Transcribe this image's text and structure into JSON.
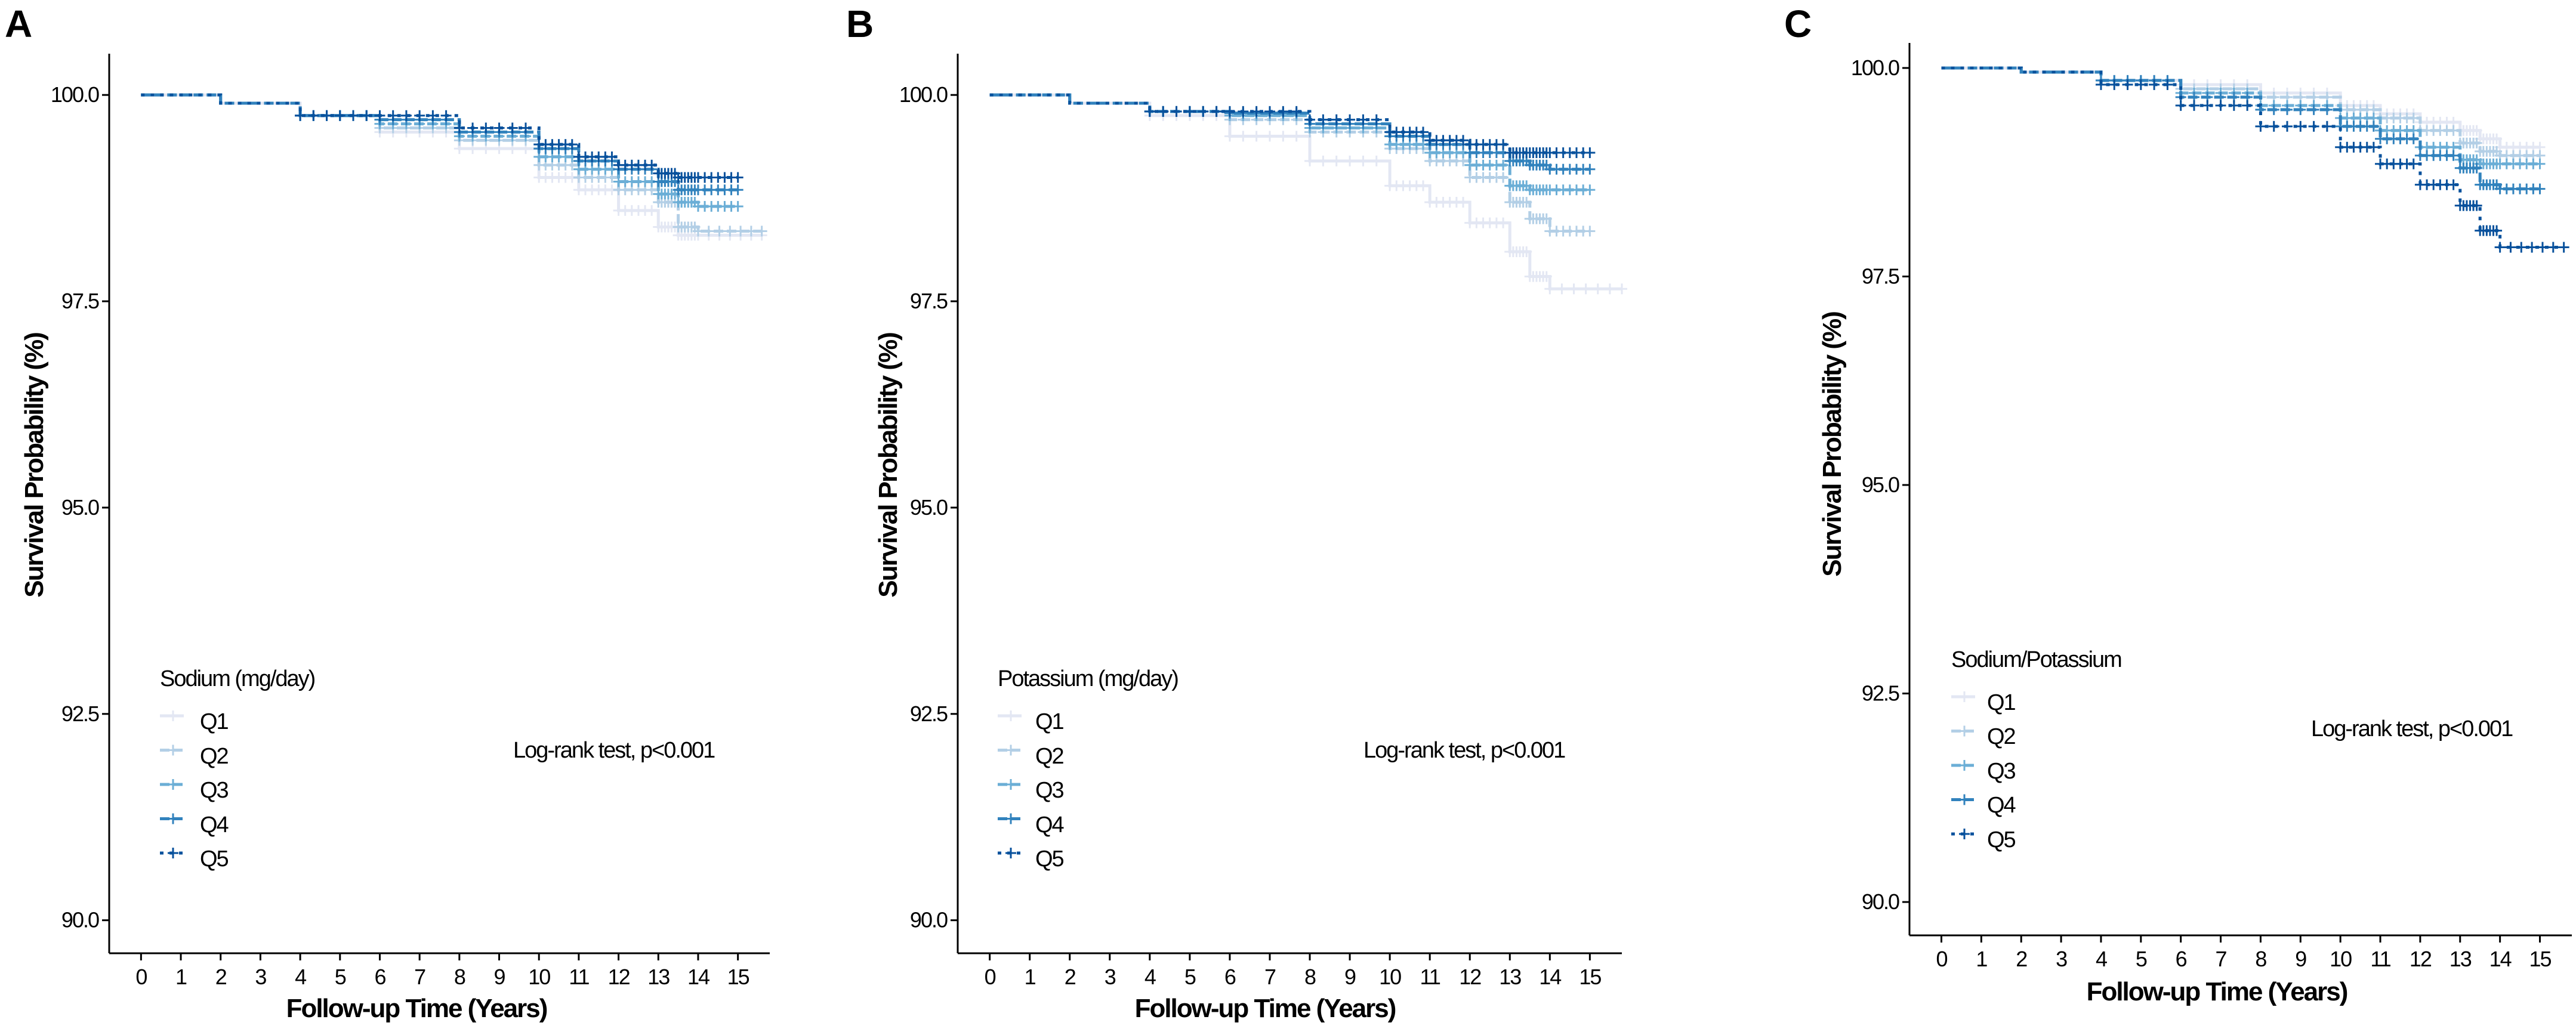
{
  "figure": {
    "panels": [
      "A",
      "B",
      "C"
    ]
  },
  "chart_data": [
    {
      "type": "line",
      "panel": "A",
      "title": "",
      "xlabel": "Follow-up Time (Years)",
      "ylabel": "Survival Probability (%)",
      "xlim": [
        -0.8,
        15.8
      ],
      "ylim": [
        89.6,
        100.5
      ],
      "x_ticks": [
        "0",
        "1",
        "2",
        "3",
        "4",
        "5",
        "6",
        "7",
        "8",
        "9",
        "10",
        "11",
        "12",
        "13",
        "14",
        "15"
      ],
      "y_ticks": [
        "90.0",
        "92.5",
        "95.0",
        "97.5",
        "100.0"
      ],
      "legend_title": "Sodium (mg/day)",
      "legend_placement": "bottom-left",
      "annotation": "Log-rank test, p<0.001",
      "series": [
        {
          "name": "Q1",
          "color": "#e3e7f3",
          "x": [
            0,
            2,
            4,
            6,
            8,
            10,
            11,
            12,
            13,
            13.5,
            14,
            15.6
          ],
          "y": [
            100,
            99.9,
            99.75,
            99.55,
            99.35,
            99.0,
            98.85,
            98.6,
            98.4,
            98.3,
            98.3,
            98.3
          ]
        },
        {
          "name": "Q2",
          "color": "#b3cfe6",
          "x": [
            0,
            2,
            4,
            6,
            8,
            10,
            11,
            12,
            13,
            13.5,
            14,
            15.6
          ],
          "y": [
            100,
            99.9,
            99.75,
            99.6,
            99.45,
            99.15,
            99.0,
            98.85,
            98.7,
            98.4,
            98.35,
            98.35
          ]
        },
        {
          "name": "Q3",
          "color": "#6baed6",
          "x": [
            0,
            2,
            4,
            6,
            8,
            10,
            11,
            12,
            13,
            13.5,
            14,
            15
          ],
          "y": [
            100,
            99.9,
            99.75,
            99.65,
            99.5,
            99.25,
            99.1,
            98.95,
            98.8,
            98.7,
            98.65,
            98.65
          ]
        },
        {
          "name": "Q4",
          "color": "#3182bd",
          "x": [
            0,
            2,
            4,
            6,
            8,
            10,
            11,
            12,
            13,
            13.5,
            14,
            15
          ],
          "y": [
            100,
            99.9,
            99.75,
            99.7,
            99.55,
            99.35,
            99.2,
            99.1,
            98.95,
            98.85,
            98.85,
            98.85
          ]
        },
        {
          "name": "Q5",
          "color": "#08519c",
          "x": [
            0,
            2,
            4,
            6,
            8,
            10,
            11,
            12,
            13,
            13.5,
            14,
            15
          ],
          "y": [
            100,
            99.9,
            99.75,
            99.75,
            99.6,
            99.4,
            99.25,
            99.15,
            99.05,
            99.0,
            99.0,
            99.0
          ]
        }
      ]
    },
    {
      "type": "line",
      "panel": "B",
      "title": "",
      "xlabel": "Follow-up Time (Years)",
      "ylabel": "Survival Probability (%)",
      "xlim": [
        -0.8,
        15.8
      ],
      "ylim": [
        89.6,
        100.5
      ],
      "x_ticks": [
        "0",
        "1",
        "2",
        "3",
        "4",
        "5",
        "6",
        "7",
        "8",
        "9",
        "10",
        "11",
        "12",
        "13",
        "14",
        "15"
      ],
      "y_ticks": [
        "90.0",
        "92.5",
        "95.0",
        "97.5",
        "100.0"
      ],
      "legend_title": "Potassium (mg/day)",
      "legend_placement": "bottom-left",
      "annotation": "Log-rank test, p<0.001",
      "series": [
        {
          "name": "Q1",
          "color": "#e3e7f3",
          "x": [
            0,
            2,
            4,
            6,
            8,
            10,
            11,
            12,
            13,
            13.5,
            14,
            15.8
          ],
          "y": [
            100,
            99.9,
            99.75,
            99.5,
            99.2,
            98.9,
            98.7,
            98.45,
            98.1,
            97.8,
            97.65,
            97.65
          ]
        },
        {
          "name": "Q2",
          "color": "#b3cfe6",
          "x": [
            0,
            2,
            4,
            6,
            8,
            10,
            11,
            12,
            13,
            13.5,
            14,
            15
          ],
          "y": [
            100,
            99.9,
            99.8,
            99.7,
            99.55,
            99.35,
            99.2,
            99.0,
            98.7,
            98.5,
            98.35,
            98.35
          ]
        },
        {
          "name": "Q3",
          "color": "#6baed6",
          "x": [
            0,
            2,
            4,
            6,
            8,
            10,
            11,
            12,
            13,
            13.5,
            14,
            15
          ],
          "y": [
            100,
            99.9,
            99.8,
            99.75,
            99.6,
            99.4,
            99.3,
            99.15,
            98.9,
            98.85,
            98.85,
            98.85
          ]
        },
        {
          "name": "Q4",
          "color": "#3182bd",
          "x": [
            0,
            2,
            4,
            6,
            8,
            10,
            11,
            12,
            13,
            13.5,
            14,
            15
          ],
          "y": [
            100,
            99.9,
            99.8,
            99.78,
            99.65,
            99.5,
            99.4,
            99.3,
            99.2,
            99.15,
            99.1,
            99.1
          ]
        },
        {
          "name": "Q5",
          "color": "#08519c",
          "x": [
            0,
            2,
            4,
            6,
            8,
            10,
            11,
            12,
            13,
            13.5,
            14,
            15
          ],
          "y": [
            100,
            99.9,
            99.8,
            99.8,
            99.7,
            99.55,
            99.45,
            99.4,
            99.3,
            99.3,
            99.3,
            99.3
          ]
        }
      ]
    },
    {
      "type": "line",
      "panel": "C",
      "title": "",
      "xlabel": "Follow-up Time (Years)",
      "ylabel": "Survival Probability (%)",
      "xlim": [
        -0.8,
        15.8
      ],
      "ylim": [
        89.6,
        100.3
      ],
      "x_ticks": [
        "0",
        "1",
        "2",
        "3",
        "4",
        "5",
        "6",
        "7",
        "8",
        "9",
        "10",
        "11",
        "12",
        "13",
        "14",
        "15"
      ],
      "y_ticks": [
        "90.0",
        "92.5",
        "95.0",
        "97.5",
        "100.0"
      ],
      "legend_title": "Sodium/Potassium",
      "legend_placement": "bottom-left",
      "annotation": "Log-rank test, p<0.001",
      "series": [
        {
          "name": "Q1",
          "color": "#e3e7f3",
          "x": [
            0,
            2,
            4,
            6,
            8,
            10,
            11,
            12,
            13,
            13.5,
            14,
            15
          ],
          "y": [
            100,
            99.95,
            99.85,
            99.8,
            99.7,
            99.55,
            99.45,
            99.35,
            99.25,
            99.15,
            99.05,
            99.05
          ]
        },
        {
          "name": "Q2",
          "color": "#b3cfe6",
          "x": [
            0,
            2,
            4,
            6,
            8,
            10,
            11,
            12,
            13,
            13.5,
            14,
            15
          ],
          "y": [
            100,
            99.95,
            99.85,
            99.75,
            99.65,
            99.5,
            99.4,
            99.25,
            99.1,
            99.0,
            98.95,
            98.95
          ]
        },
        {
          "name": "Q3",
          "color": "#6baed6",
          "x": [
            0,
            2,
            4,
            6,
            8,
            10,
            11,
            12,
            13,
            13.5,
            14,
            15
          ],
          "y": [
            100,
            99.95,
            99.85,
            99.7,
            99.55,
            99.4,
            99.25,
            99.05,
            98.9,
            98.85,
            98.85,
            98.85
          ]
        },
        {
          "name": "Q4",
          "color": "#3182bd",
          "x": [
            0,
            2,
            4,
            6,
            8,
            10,
            11,
            12,
            13,
            13.5,
            14,
            15
          ],
          "y": [
            100,
            99.95,
            99.85,
            99.65,
            99.5,
            99.3,
            99.15,
            98.95,
            98.8,
            98.6,
            98.55,
            98.55
          ]
        },
        {
          "name": "Q5",
          "color": "#08519c",
          "x": [
            0,
            2,
            4,
            6,
            8,
            10,
            11,
            12,
            13,
            13.5,
            14,
            15.6
          ],
          "y": [
            100,
            99.95,
            99.8,
            99.55,
            99.3,
            99.05,
            98.85,
            98.6,
            98.35,
            98.05,
            97.85,
            97.85
          ]
        }
      ]
    }
  ]
}
